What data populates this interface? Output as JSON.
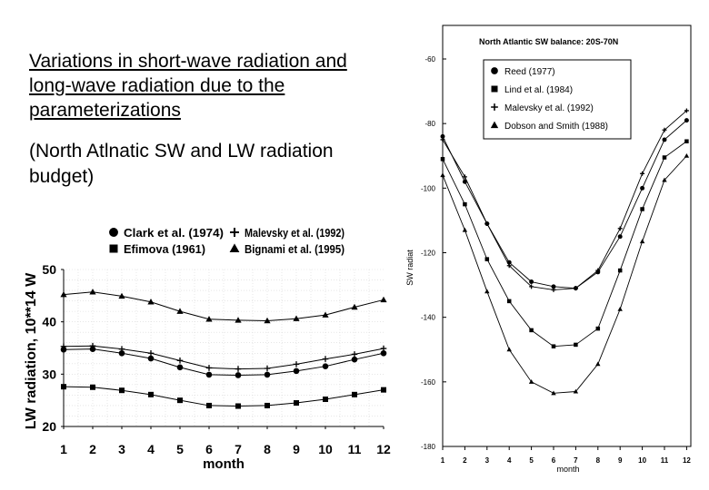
{
  "slide": {
    "title": "Variations in short-wave radiation and long-wave radiation due to the parameterizations",
    "subtitle": "(North Atlnatic SW and LW radiation budget)"
  },
  "chart_data": [
    {
      "id": "lw",
      "type": "line",
      "title": "",
      "xlabel": "month",
      "ylabel": "LW radiation, 10**14 W",
      "x": [
        1,
        2,
        3,
        4,
        5,
        6,
        7,
        8,
        9,
        10,
        11,
        12
      ],
      "xticks": [
        "1",
        "2",
        "3",
        "4",
        "5",
        "6",
        "7",
        "8",
        "9",
        "10",
        "11",
        "12"
      ],
      "yticks": [
        "20",
        "30",
        "40",
        "50"
      ],
      "ylim": [
        20,
        50
      ],
      "grid": true,
      "legend_position": "top-center",
      "series": [
        {
          "name": "Clark et al. (1974)",
          "marker": "circle",
          "values": [
            34.7,
            34.8,
            34.0,
            33.0,
            31.3,
            29.9,
            29.8,
            29.9,
            30.6,
            31.5,
            32.8,
            34.0
          ]
        },
        {
          "name": "Efimova (1961)",
          "marker": "square",
          "values": [
            27.6,
            27.5,
            26.9,
            26.1,
            25.0,
            24.0,
            23.9,
            24.0,
            24.5,
            25.2,
            26.1,
            27.0
          ]
        },
        {
          "name": "Malevsky et al. (1992)",
          "marker": "plus",
          "values": [
            35.3,
            35.4,
            34.8,
            34.0,
            32.6,
            31.2,
            31.0,
            31.1,
            31.9,
            32.9,
            33.8,
            34.9
          ]
        },
        {
          "name": "Bignami et al. (1995)",
          "marker": "triangle",
          "values": [
            45.2,
            45.7,
            44.9,
            43.8,
            42.0,
            40.5,
            40.3,
            40.2,
            40.6,
            41.3,
            42.8,
            44.2
          ]
        }
      ]
    },
    {
      "id": "sw",
      "type": "line",
      "title": "North Atlantic SW balance: 20S-70N",
      "xlabel": "month",
      "ylabel": "SW radiat",
      "x": [
        1,
        2,
        3,
        4,
        5,
        6,
        7,
        8,
        9,
        10,
        11,
        12
      ],
      "xticks": [
        "1",
        "2",
        "3",
        "4",
        "5",
        "6",
        "7",
        "8",
        "9",
        "10",
        "11",
        "12"
      ],
      "yticks": [
        "-60",
        "-80",
        "-100",
        "-120",
        "-140",
        "-160",
        "-180"
      ],
      "ylim": [
        -180,
        -60
      ],
      "grid": false,
      "legend_position": "top-center",
      "series": [
        {
          "name": "Reed (1977)",
          "marker": "circle",
          "values": [
            -84,
            -98,
            -111,
            -123,
            -129,
            -130.5,
            -131,
            -126,
            -115,
            -100,
            -85,
            -79
          ]
        },
        {
          "name": "Lind et al. (1984)",
          "marker": "square",
          "values": [
            -91,
            -105,
            -122,
            -135,
            -144,
            -149,
            -148.5,
            -143.5,
            -125.5,
            -106.5,
            -90.5,
            -85.5
          ]
        },
        {
          "name": "Malevsky et al. (1992)",
          "marker": "plus",
          "values": [
            -85,
            -96.5,
            -111,
            -124,
            -130.5,
            -131.5,
            -131,
            -125.5,
            -112.5,
            -95.5,
            -82,
            -76
          ]
        },
        {
          "name": "Dobson and Smith (1988)",
          "marker": "triangle",
          "values": [
            -96,
            -113,
            -132,
            -150,
            -160,
            -163.5,
            -163,
            -154.5,
            -137.5,
            -116.5,
            -97.5,
            -90
          ]
        }
      ]
    }
  ]
}
